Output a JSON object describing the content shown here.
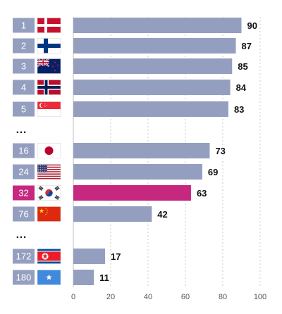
{
  "chart_data": {
    "type": "bar",
    "orientation": "horizontal",
    "rows": [
      {
        "rank": "1",
        "flag": "denmark-flag",
        "value": 90
      },
      {
        "rank": "2",
        "flag": "finland-flag",
        "value": 87
      },
      {
        "rank": "3",
        "flag": "new-zealand-flag",
        "value": 85
      },
      {
        "rank": "4",
        "flag": "norway-flag",
        "value": 84
      },
      {
        "rank": "5",
        "flag": "singapore-flag",
        "value": 83
      },
      {
        "separator": "…"
      },
      {
        "rank": "16",
        "flag": "japan-flag",
        "value": 73
      },
      {
        "rank": "24",
        "flag": "united-states-flag",
        "value": 69
      },
      {
        "rank": "32",
        "flag": "south-korea-flag",
        "value": 63,
        "highlight": true
      },
      {
        "rank": "76",
        "flag": "china-flag",
        "value": 42
      },
      {
        "separator": "…"
      },
      {
        "rank": "172",
        "flag": "north-korea-flag",
        "value": 17
      },
      {
        "rank": "180",
        "flag": "somalia-flag",
        "value": 11
      }
    ],
    "x_ticks": [
      "0",
      "20",
      "40",
      "60",
      "80",
      "100"
    ],
    "xlim": [
      0,
      100
    ],
    "grid": "vertical dotted",
    "colors": {
      "bar": "#949fc0",
      "highlight": "#c6287f",
      "rank_box": "#949fc0",
      "value_text": "#111111"
    }
  }
}
